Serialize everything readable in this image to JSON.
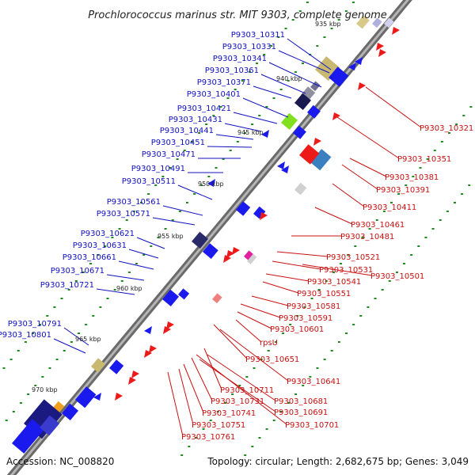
{
  "title": "Prochlorococcus marinus str. MIT 9303, complete genome",
  "footer": {
    "accession": "Accession: NC_008820",
    "summary": "Topology: circular; Length: 2,682,675 bp; Genes: 3,049"
  },
  "ticks": [
    "935 kbp",
    "940 kbp",
    "945 kbp",
    "950 kbp",
    "955 kbp",
    "960 kbp",
    "965 kbp",
    "970 kbp"
  ],
  "forward_genes": [
    "P9303_10311",
    "P9303_10331",
    "P9303_10341",
    "P9303_10361",
    "P9303_10371",
    "P9303_10401",
    "P9303_10421",
    "P9303_10431",
    "P9303_10441",
    "P9303_10451",
    "P9303_10471",
    "P9303_10491",
    "P9303_10511",
    "P9303_10561",
    "P9303_10571",
    "P9303_10621",
    "P9303_10631",
    "P9303_10661",
    "P9303_10671",
    "P9303_10721",
    "P9303_10791",
    "P9303_10801"
  ],
  "reverse_genes": [
    "P9303_10321",
    "P9303_10351",
    "P9303_10381",
    "P9303_10391",
    "P9303_10411",
    "P9303_10461",
    "P9303_10481",
    "P9303_10521",
    "P9303_10531",
    "P9303_10501",
    "P9303_10541",
    "P9303_10551",
    "P9303_10581",
    "P9303_10591",
    "P9303_10601",
    "rpsU",
    "P9303_10651",
    "P9303_10641",
    "P9303_10711",
    "P9303_10681",
    "P9303_10731",
    "P9303_10691",
    "P9303_10741",
    "P9303_10701",
    "P9303_10751",
    "P9303_10761"
  ],
  "colors": {
    "backbone": "#8a8a8a",
    "forward_label": "#1010c0",
    "reverse_label": "#c81010",
    "cds_forward": "#1a1aee",
    "cds_reverse": "#ee1a1a",
    "gc_dots": "#1f8a1f"
  }
}
